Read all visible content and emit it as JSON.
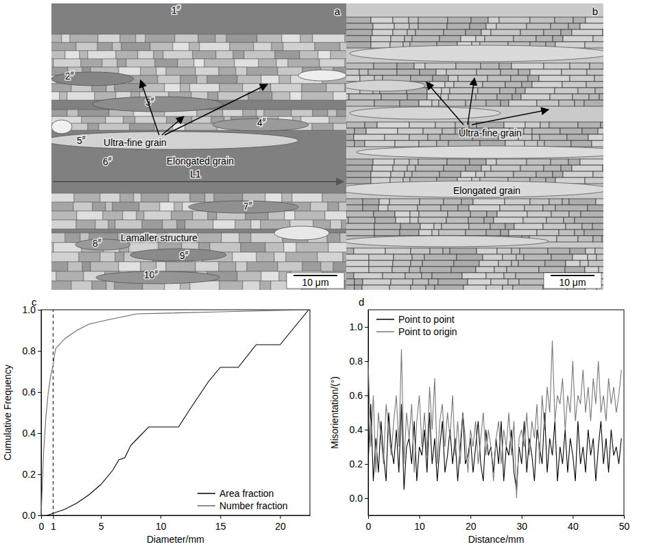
{
  "panels": [
    {
      "letter": "a",
      "grain_labels": [
        "1#",
        "2#",
        "3#",
        "4#",
        "5#",
        "6#",
        "7#",
        "8#",
        "9#",
        "10#"
      ],
      "annotations": [
        "Ultra-fine grain",
        "Elongated grain",
        "L1",
        "Lamaller structure"
      ],
      "scale_bar": "10 μm"
    },
    {
      "letter": "b",
      "annotations": [
        "Ultra-fine grain",
        "Elongated grain"
      ],
      "scale_bar": "10 μm"
    }
  ],
  "chart_data": [
    {
      "letter": "c",
      "type": "line",
      "x_label": "Diameter/mm",
      "y_label": "Cumulative Frequency",
      "xlim": [
        0,
        22.5
      ],
      "ylim": [
        0,
        1.0
      ],
      "xticks": [
        0,
        1,
        5,
        10,
        15,
        20
      ],
      "yticks": [
        {
          "value": 0,
          "label": "0.0"
        },
        {
          "value": 0.2,
          "label": "0.2"
        },
        {
          "value": 0.4,
          "label": "0.4"
        },
        {
          "value": 0.6,
          "label": "0.6"
        },
        {
          "value": 0.8,
          "label": "0.8"
        },
        {
          "value": 1.0,
          "label": "1.0"
        }
      ],
      "legend": "lower right",
      "reference_x": 1,
      "series": [
        {
          "name": "Area fraction",
          "color": "#000000",
          "x": [
            0.5,
            1,
            2,
            3,
            4,
            5,
            6,
            6.5,
            7,
            7.5,
            8,
            9,
            11.5,
            12.5,
            14,
            15,
            16.5,
            18,
            20,
            22.4
          ],
          "values": [
            0,
            0.01,
            0.03,
            0.06,
            0.1,
            0.15,
            0.22,
            0.27,
            0.28,
            0.34,
            0.37,
            0.43,
            0.43,
            0.52,
            0.65,
            0.72,
            0.72,
            0.83,
            0.83,
            1.0
          ]
        },
        {
          "name": "Number fraction",
          "color": "#666666",
          "x": [
            0,
            0.2,
            0.4,
            0.6,
            0.8,
            1,
            1.2,
            2,
            3,
            4,
            5.5,
            8,
            15,
            22.4
          ],
          "values": [
            0,
            0.3,
            0.48,
            0.6,
            0.68,
            0.73,
            0.81,
            0.86,
            0.9,
            0.93,
            0.95,
            0.98,
            0.99,
            1.0
          ]
        }
      ]
    },
    {
      "letter": "d",
      "type": "line",
      "x_label": "Distance/mm",
      "y_label": "Misorientation/(°)",
      "xlim": [
        0,
        50
      ],
      "ylim": [
        -0.1,
        1.1
      ],
      "xticks": [
        0,
        10,
        20,
        30,
        40,
        50
      ],
      "yticks": [
        {
          "value": 0,
          "label": "0.0"
        },
        {
          "value": 0.2,
          "label": "0.2"
        },
        {
          "value": 0.4,
          "label": "0.4"
        },
        {
          "value": 0.6,
          "label": "0.6"
        },
        {
          "value": 0.8,
          "label": "0.8"
        },
        {
          "value": 1.0,
          "label": "1.0"
        }
      ],
      "legend": "upper left",
      "x": [
        0,
        0.5,
        1,
        1.5,
        2,
        2.5,
        3,
        3.5,
        4,
        4.5,
        5,
        5.5,
        6,
        6.5,
        7,
        7.5,
        8,
        8.5,
        9,
        9.5,
        10,
        10.5,
        11,
        11.5,
        12,
        12.5,
        13,
        13.5,
        14,
        14.5,
        15,
        15.5,
        16,
        16.5,
        17,
        17.5,
        18,
        18.5,
        19,
        19.5,
        20,
        20.5,
        21,
        21.5,
        22,
        22.5,
        23,
        23.5,
        24,
        24.5,
        25,
        25.5,
        26,
        26.5,
        27,
        27.5,
        28,
        28.5,
        29,
        29.5,
        30,
        30.5,
        31,
        31.5,
        32,
        32.5,
        33,
        33.5,
        34,
        34.5,
        35,
        35.5,
        36,
        36.5,
        37,
        37.5,
        38,
        38.5,
        39,
        39.5,
        40,
        40.5,
        41,
        41.5,
        42,
        42.5,
        43,
        43.5,
        44,
        44.5,
        45,
        45.5,
        46,
        46.5,
        47,
        47.5,
        48,
        48.5,
        49,
        49.5
      ],
      "series": [
        {
          "name": "Point to point",
          "color": "#000000",
          "values": [
            0.2,
            0.55,
            0.1,
            0.35,
            0.15,
            0.45,
            0.25,
            0.1,
            0.5,
            0.3,
            0.2,
            0.4,
            0.15,
            0.55,
            0.05,
            0.3,
            0.35,
            0.2,
            0.45,
            0.1,
            0.3,
            0.25,
            0.4,
            0.15,
            0.5,
            0.2,
            0.35,
            0.1,
            0.3,
            0.45,
            0.15,
            0.25,
            0.4,
            0.2,
            0.35,
            0.1,
            0.3,
            0.5,
            0.2,
            0.25,
            0.35,
            0.15,
            0.3,
            0.45,
            0.2,
            0.1,
            0.4,
            0.25,
            0.3,
            0.15,
            0.35,
            0.2,
            0.45,
            0.1,
            0.3,
            0.25,
            0.4,
            0.15,
            0.05,
            0.3,
            0.2,
            0.45,
            0.15,
            0.35,
            0.25,
            0.1,
            0.4,
            0.3,
            0.2,
            0.5,
            0.15,
            0.35,
            0.25,
            0.45,
            0.1,
            0.3,
            0.2,
            0.4,
            0.15,
            0.35,
            0.25,
            0.1,
            0.45,
            0.2,
            0.3,
            0.15,
            0.4,
            0.25,
            0.35,
            0.1,
            0.3,
            0.45,
            0.2,
            0.35,
            0.15,
            0.4,
            0.25,
            0.3,
            0.2,
            0.35
          ]
        },
        {
          "name": "Point to origin",
          "color": "#777777",
          "values": [
            0.8,
            0.3,
            0.6,
            0.15,
            0.5,
            0.35,
            0.2,
            0.55,
            0.4,
            0.25,
            0.45,
            0.6,
            0.3,
            0.87,
            0.2,
            0.5,
            0.35,
            0.55,
            0.15,
            0.45,
            0.6,
            0.3,
            0.5,
            0.25,
            0.65,
            0.4,
            0.7,
            0.2,
            0.45,
            0.55,
            0.3,
            0.5,
            0.35,
            0.6,
            0.25,
            0.45,
            0.2,
            0.5,
            0.35,
            0.15,
            0.4,
            0.3,
            0.45,
            0.2,
            0.35,
            0.5,
            0.25,
            0.4,
            0.3,
            0.1,
            0.35,
            0.45,
            0.2,
            0.4,
            0.3,
            0.5,
            0.25,
            0.45,
            0.0,
            0.35,
            0.4,
            0.3,
            0.5,
            0.25,
            0.45,
            0.35,
            0.55,
            0.2,
            0.6,
            0.4,
            0.65,
            0.5,
            0.92,
            0.45,
            0.6,
            0.55,
            0.7,
            0.4,
            0.6,
            0.5,
            0.8,
            0.45,
            0.6,
            0.55,
            0.75,
            0.5,
            0.65,
            0.45,
            0.7,
            0.55,
            0.8,
            0.5,
            0.6,
            0.45,
            0.7,
            0.55,
            0.65,
            0.5,
            0.6,
            0.75
          ]
        }
      ]
    }
  ]
}
